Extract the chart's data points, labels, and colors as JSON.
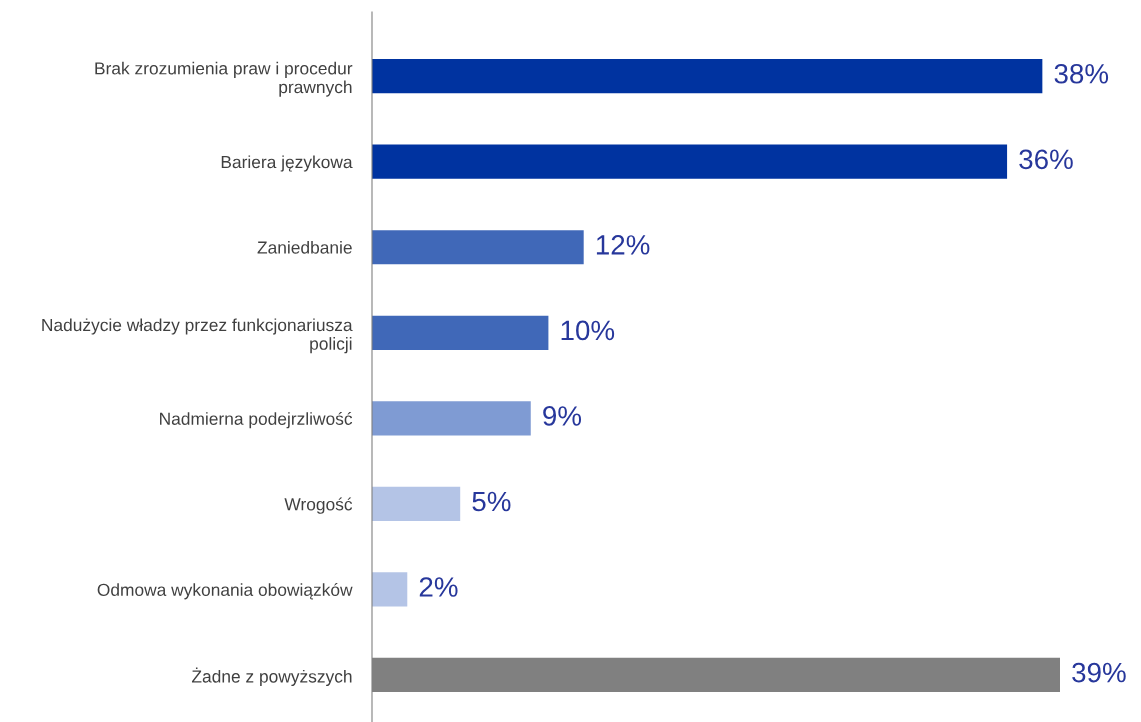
{
  "chart_data": {
    "type": "bar",
    "orientation": "horizontal",
    "categories": [
      "Brak zrozumienia praw i procedur\nprawnych",
      "Bariera językowa",
      "Zaniedbanie",
      "Nadużycie władzy przez funkcjonariusza\npolicji",
      "Nadmierna podejrzliwość",
      "Wrogość",
      "Odmowa wykonania obowiązków",
      "Żadne z powyższych"
    ],
    "values": [
      38,
      36,
      12,
      10,
      9,
      5,
      2,
      39
    ],
    "colors": [
      "#0033a0",
      "#0033a0",
      "#4068b8",
      "#4068b8",
      "#7f9bd3",
      "#b4c4e6",
      "#b4c4e6",
      "#808080"
    ],
    "value_labels": [
      "38%",
      "36%",
      "12%",
      "10%",
      "9%",
      "5%",
      "2%",
      "39%"
    ],
    "grid": false,
    "legend": false
  }
}
